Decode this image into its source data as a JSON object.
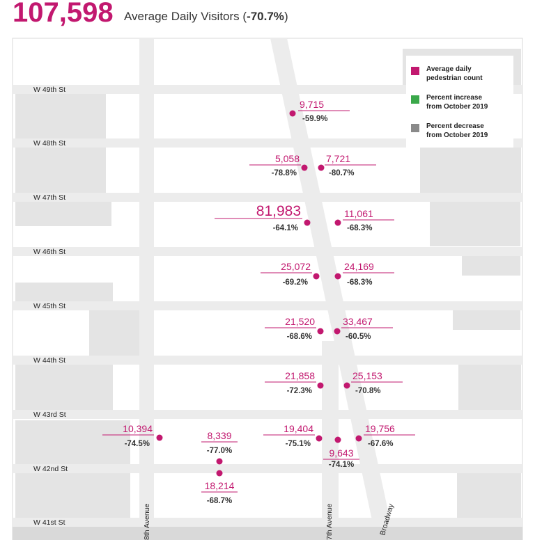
{
  "header": {
    "total_visitors": "107,598",
    "subtitle_prefix": "Average Daily Visitors (",
    "subtitle_pct": "-70.7%",
    "subtitle_suffix": ")"
  },
  "colors": {
    "accent": "#c2186f",
    "increase": "#3aa84a",
    "decrease": "#8a8a8a",
    "block": "#e4e4e4",
    "street": "#ececec"
  },
  "legend": [
    {
      "label_line1": "Average daily",
      "label_line2": "pedestrian count",
      "color": "#c2186f"
    },
    {
      "label_line1": "Percent increase",
      "label_line2": "from October 2019",
      "color": "#3aa84a"
    },
    {
      "label_line1": "Percent decrease",
      "label_line2": "from October 2019",
      "color": "#8a8a8a"
    }
  ],
  "streets": [
    "W 49th St",
    "W 48th St",
    "W 47th St",
    "W 46th St",
    "W 45th St",
    "W 44th St",
    "W 43rd St",
    "W 42nd St",
    "W 41st St"
  ],
  "avenues": [
    "8th Avenue",
    "7th Avenue",
    "Broadway"
  ],
  "locations": [
    {
      "count": "9,715",
      "pct": "-59.9%"
    },
    {
      "count": "5,058",
      "pct": "-78.8%"
    },
    {
      "count": "7,721",
      "pct": "-80.7%"
    },
    {
      "count": "81,983",
      "pct": "-64.1%"
    },
    {
      "count": "11,061",
      "pct": "-68.3%"
    },
    {
      "count": "25,072",
      "pct": "-69.2%"
    },
    {
      "count": "24,169",
      "pct": "-68.3%"
    },
    {
      "count": "21,520",
      "pct": "-68.6%"
    },
    {
      "count": "33,467",
      "pct": "-60.5%"
    },
    {
      "count": "21,858",
      "pct": "-72.3%"
    },
    {
      "count": "25,153",
      "pct": "-70.8%"
    },
    {
      "count": "10,394",
      "pct": "-74.5%"
    },
    {
      "count": "8,339",
      "pct": "-77.0%"
    },
    {
      "count": "18,214",
      "pct": "-68.7%"
    },
    {
      "count": "19,404",
      "pct": "-75.1%"
    },
    {
      "count": "9,643",
      "pct": "-74.1%"
    },
    {
      "count": "19,756",
      "pct": "-67.6%"
    }
  ]
}
